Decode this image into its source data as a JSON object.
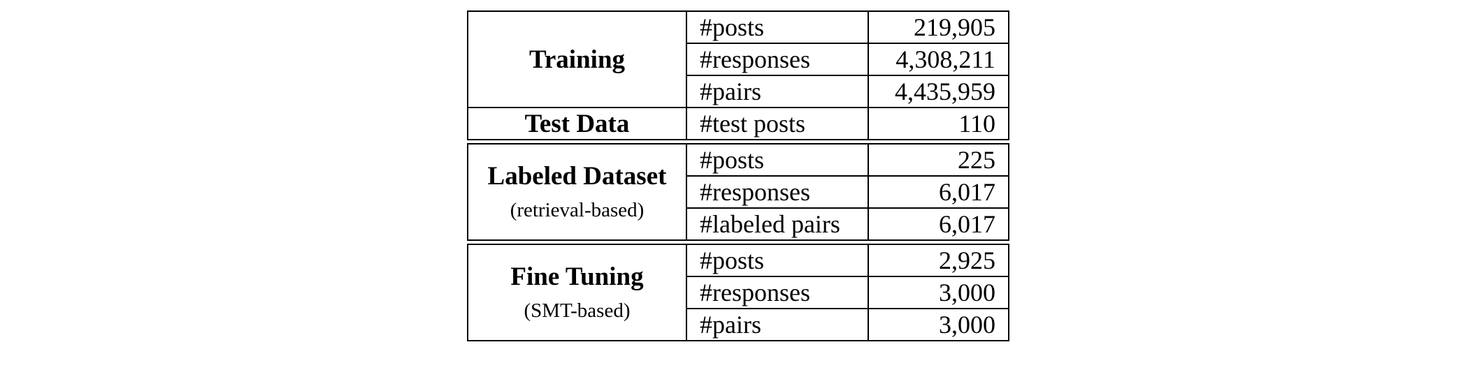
{
  "table": {
    "groups": [
      {
        "title": "Training",
        "subtitle": "",
        "rows": [
          {
            "label": "#posts",
            "value": "219,905"
          },
          {
            "label": "#responses",
            "value": "4,308,211"
          },
          {
            "label": "#pairs",
            "value": "4,435,959"
          }
        ]
      },
      {
        "title": "Test Data",
        "subtitle": "",
        "rows": [
          {
            "label": "#test posts",
            "value": "110"
          }
        ]
      },
      {
        "title": "Labeled Dataset",
        "subtitle": "(retrieval-based)",
        "rows": [
          {
            "label": "#posts",
            "value": "225"
          },
          {
            "label": "#responses",
            "value": "6,017"
          },
          {
            "label": "#labeled pairs",
            "value": "6,017"
          }
        ]
      },
      {
        "title": "Fine Tuning",
        "subtitle": "(SMT-based)",
        "rows": [
          {
            "label": "#posts",
            "value": "2,925"
          },
          {
            "label": "#responses",
            "value": "3,000"
          },
          {
            "label": "#pairs",
            "value": "3,000"
          }
        ]
      }
    ]
  }
}
